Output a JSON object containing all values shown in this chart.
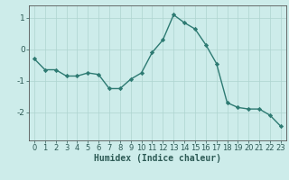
{
  "x": [
    0,
    1,
    2,
    3,
    4,
    5,
    6,
    7,
    8,
    9,
    10,
    11,
    12,
    13,
    14,
    15,
    16,
    17,
    18,
    19,
    20,
    21,
    22,
    23
  ],
  "y": [
    -0.3,
    -0.65,
    -0.65,
    -0.85,
    -0.85,
    -0.75,
    -0.8,
    -1.25,
    -1.25,
    -0.95,
    -0.75,
    -0.1,
    0.3,
    1.1,
    0.85,
    0.65,
    0.15,
    -0.45,
    -1.7,
    -1.85,
    -1.9,
    -1.9,
    -2.1,
    -2.45
  ],
  "line_color": "#2d7a72",
  "marker": "D",
  "marker_size": 2.2,
  "linewidth": 1.0,
  "xlabel": "Humidex (Indice chaleur)",
  "xlabel_fontsize": 7,
  "xlabel_fontweight": "bold",
  "bg_color": "#cdecea",
  "grid_color": "#aed4d0",
  "spine_color": "#555555",
  "tick_color": "#2d5a55",
  "ylim": [
    -2.9,
    1.4
  ],
  "yticks": [
    -2,
    -1,
    0,
    1
  ],
  "xlim": [
    -0.5,
    23.5
  ],
  "xticks": [
    0,
    1,
    2,
    3,
    4,
    5,
    6,
    7,
    8,
    9,
    10,
    11,
    12,
    13,
    14,
    15,
    16,
    17,
    18,
    19,
    20,
    21,
    22,
    23
  ],
  "tick_fontsize": 6.0,
  "ytick_fontsize": 6.5
}
